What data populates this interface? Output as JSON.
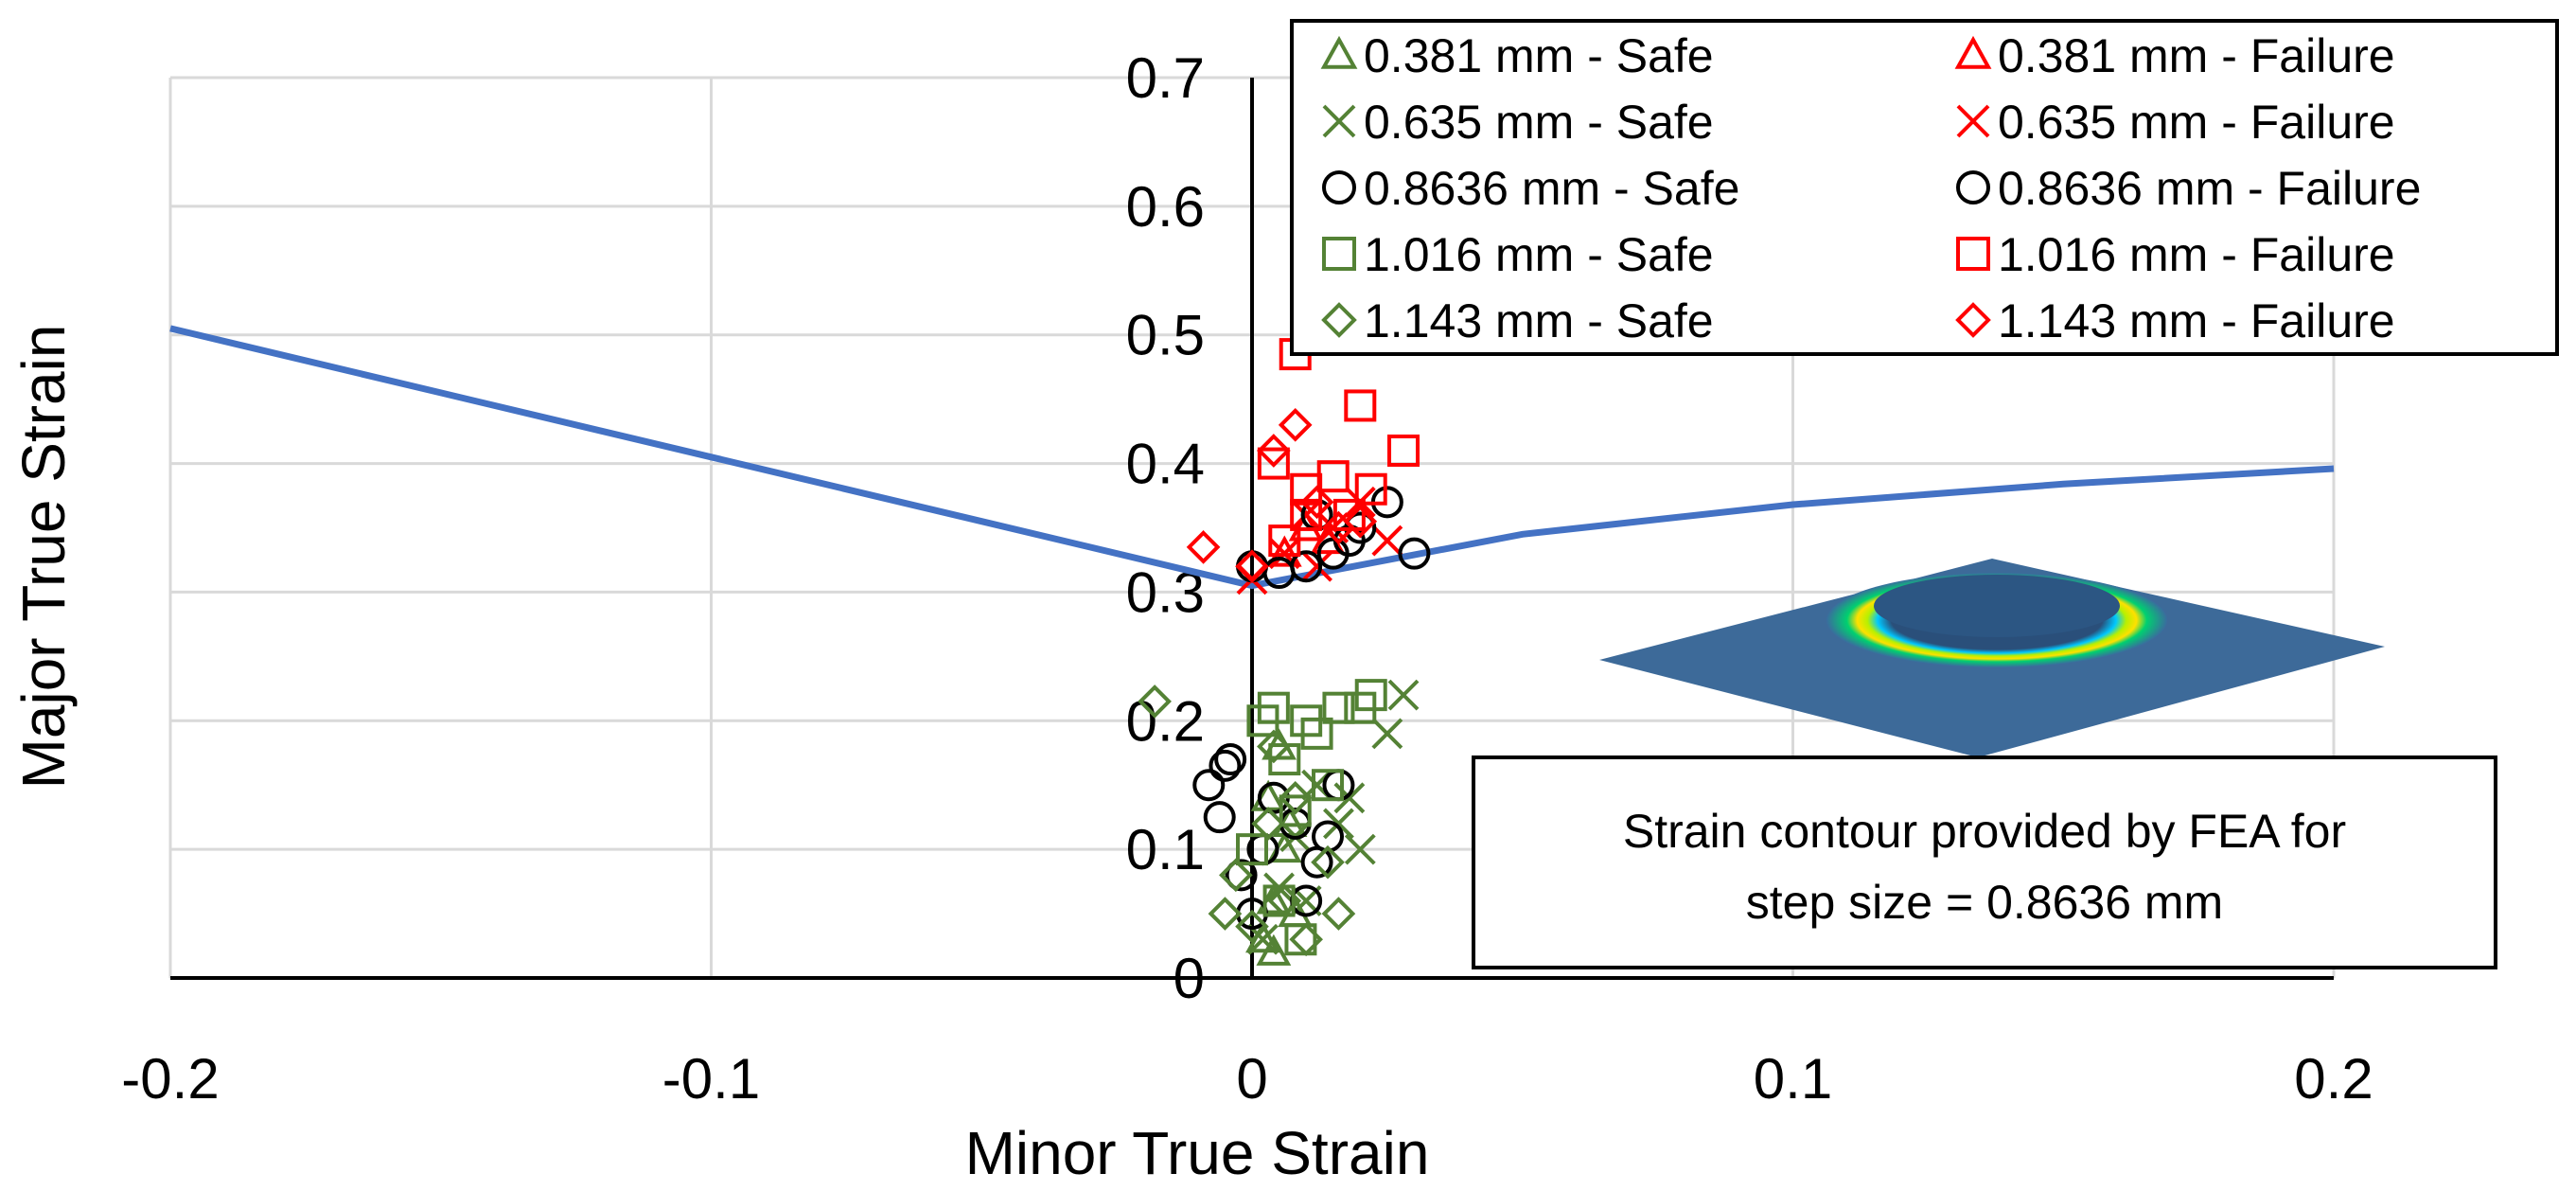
{
  "chart_data": {
    "type": "scatter",
    "title": "",
    "xlabel": "Minor True Strain",
    "ylabel": "Major True Strain",
    "xlim": [
      -0.2,
      0.2
    ],
    "ylim": [
      0,
      0.7
    ],
    "x_ticks": [
      "-0.2",
      "-0.1",
      "0",
      "0.1",
      "0.2"
    ],
    "y_ticks": [
      "0",
      "0.1",
      "0.2",
      "0.3",
      "0.4",
      "0.5",
      "0.6",
      "0.7"
    ],
    "grid": true,
    "legend_position": "top-right",
    "flc_line": {
      "color": "#4472C4",
      "x": [
        -0.2,
        -0.15,
        -0.1,
        -0.05,
        0.0,
        0.05,
        0.1,
        0.15,
        0.2
      ],
      "y": [
        0.505,
        0.455,
        0.405,
        0.355,
        0.305,
        0.345,
        0.368,
        0.384,
        0.396
      ]
    },
    "series": [
      {
        "name": "0.381 mm - Safe",
        "marker": "triangle",
        "color": "#548235",
        "x": [
          0.002,
          0.004,
          0.006,
          0.003,
          0.008,
          0.005,
          0.007,
          0.004
        ],
        "y": [
          0.03,
          0.06,
          0.1,
          0.14,
          0.05,
          0.18,
          0.12,
          0.02
        ]
      },
      {
        "name": "0.381 mm - Failure",
        "marker": "triangle",
        "color": "#FF0000",
        "x": [
          0.006,
          0.01,
          0.014
        ],
        "y": [
          0.33,
          0.35,
          0.34
        ]
      },
      {
        "name": "0.635 mm - Safe",
        "marker": "x",
        "color": "#548235",
        "x": [
          0.002,
          0.005,
          0.008,
          0.012,
          0.016,
          0.02,
          0.025,
          0.028,
          0.018,
          0.01
        ],
        "y": [
          0.03,
          0.07,
          0.11,
          0.15,
          0.12,
          0.1,
          0.19,
          0.22,
          0.14,
          0.06
        ]
      },
      {
        "name": "0.635 mm - Failure",
        "marker": "x",
        "color": "#FF0000",
        "x": [
          0.0,
          0.006,
          0.01,
          0.015,
          0.02,
          0.025,
          0.012
        ],
        "y": [
          0.31,
          0.33,
          0.36,
          0.35,
          0.37,
          0.34,
          0.32
        ]
      },
      {
        "name": "0.8636 mm - Safe",
        "marker": "circle",
        "color": "#000000",
        "x": [
          -0.008,
          -0.005,
          -0.004,
          -0.006,
          -0.002,
          0.0,
          0.002,
          0.004,
          0.008,
          0.012,
          0.016,
          0.01,
          0.014
        ],
        "y": [
          0.15,
          0.165,
          0.17,
          0.125,
          0.08,
          0.05,
          0.1,
          0.14,
          0.12,
          0.09,
          0.15,
          0.06,
          0.11
        ]
      },
      {
        "name": "0.8636 mm - Failure",
        "marker": "circle",
        "color": "#000000",
        "x": [
          0.0,
          0.005,
          0.01,
          0.015,
          0.02,
          0.025,
          0.03,
          0.018,
          0.012
        ],
        "y": [
          0.32,
          0.315,
          0.32,
          0.33,
          0.35,
          0.37,
          0.33,
          0.34,
          0.36
        ]
      },
      {
        "name": "1.016 mm - Safe",
        "marker": "square",
        "color": "#548235",
        "x": [
          0.0,
          0.002,
          0.004,
          0.006,
          0.008,
          0.01,
          0.012,
          0.014,
          0.016,
          0.02,
          0.022,
          0.005,
          0.009
        ],
        "y": [
          0.1,
          0.2,
          0.21,
          0.17,
          0.13,
          0.2,
          0.19,
          0.15,
          0.21,
          0.21,
          0.22,
          0.06,
          0.03
        ]
      },
      {
        "name": "1.016 mm - Failure",
        "marker": "square",
        "color": "#FF0000",
        "x": [
          0.004,
          0.008,
          0.01,
          0.015,
          0.018,
          0.02,
          0.028,
          0.01,
          0.022,
          0.006
        ],
        "y": [
          0.4,
          0.485,
          0.38,
          0.39,
          0.36,
          0.445,
          0.41,
          0.36,
          0.38,
          0.34
        ]
      },
      {
        "name": "1.143 mm - Safe",
        "marker": "diamond",
        "color": "#548235",
        "x": [
          -0.018,
          -0.005,
          -0.003,
          0.0,
          0.003,
          0.006,
          0.01,
          0.014,
          0.016,
          0.004,
          0.008
        ],
        "y": [
          0.215,
          0.05,
          0.08,
          0.04,
          0.12,
          0.06,
          0.03,
          0.09,
          0.05,
          0.18,
          0.14
        ]
      },
      {
        "name": "1.143 mm - Failure",
        "marker": "diamond",
        "color": "#FF0000",
        "x": [
          -0.009,
          0.004,
          0.008,
          0.012,
          0.016,
          0.0,
          0.02
        ],
        "y": [
          0.335,
          0.41,
          0.43,
          0.37,
          0.35,
          0.32,
          0.355
        ]
      }
    ]
  },
  "annotation": {
    "line1": "Strain contour provided by FEA for",
    "line2": "step size = 0.8636 mm"
  },
  "colors": {
    "safe": "#548235",
    "failure": "#FF0000",
    "circle": "#000000",
    "flc": "#4472C4",
    "grid": "#D9D9D9"
  }
}
